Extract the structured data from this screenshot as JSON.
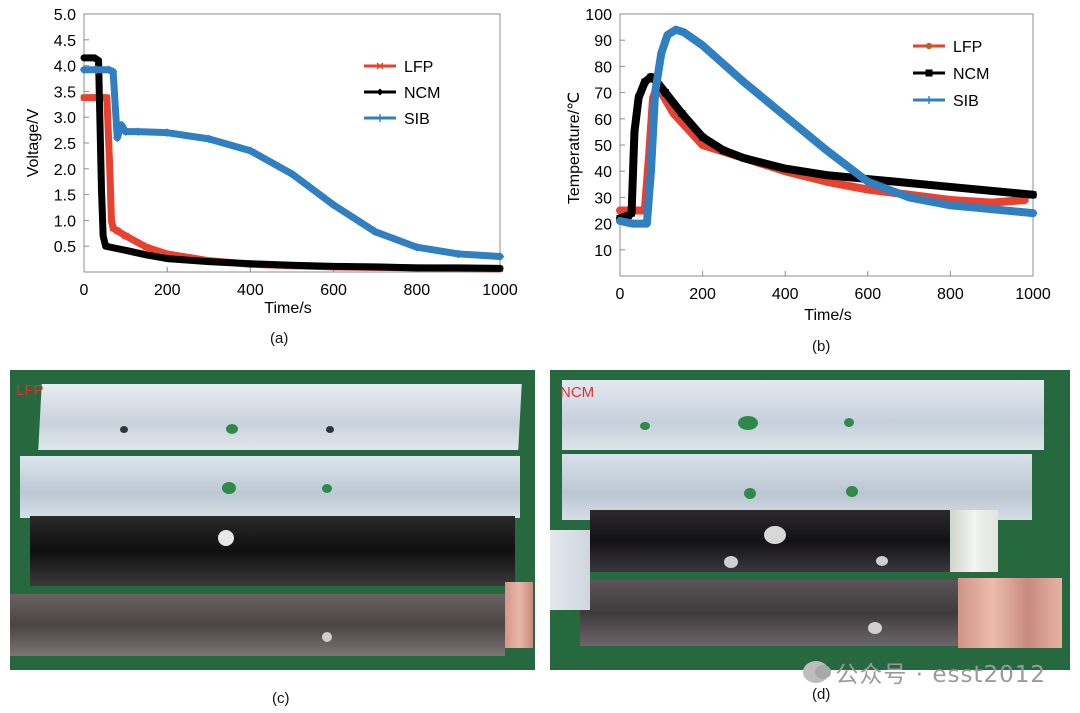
{
  "figure": {
    "panel_labels": [
      "(a)",
      "(b)",
      "(c)",
      "(d)"
    ],
    "photo_labels": {
      "c": "LFP",
      "d": "NCM"
    },
    "watermark": "公众号 · esst2012"
  },
  "colors": {
    "LFP_voltage": "#e8412f",
    "LFP_temp": "#e8412f",
    "LFP_marker_temp": "#b5651d",
    "NCM": "#000000",
    "SIB": "#2f7fc1"
  },
  "chart_data": [
    {
      "type": "line",
      "xlabel": "Time/s",
      "ylabel": "Voltage/V",
      "xlim": [
        0,
        1000
      ],
      "ylim": [
        0.0,
        5.0
      ],
      "xticks": [
        "0",
        "200",
        "400",
        "600",
        "800",
        "1000"
      ],
      "yticks": [
        "0.5",
        "1.0",
        "1.5",
        "2.0",
        "2.5",
        "3.0",
        "3.5",
        "4.0",
        "4.5",
        "5.0"
      ],
      "grid": false,
      "legend_position": "top-right",
      "series": [
        {
          "name": "LFP",
          "color": "#e8412f",
          "marker": "cross",
          "x": [
            0,
            20,
            40,
            55,
            62,
            66,
            70,
            80,
            100,
            150,
            200,
            300,
            400,
            500,
            600,
            700,
            800,
            900,
            1000
          ],
          "y": [
            3.38,
            3.38,
            3.38,
            3.38,
            2.0,
            1.0,
            0.85,
            0.8,
            0.7,
            0.48,
            0.35,
            0.22,
            0.15,
            0.12,
            0.1,
            0.09,
            0.08,
            0.07,
            0.06
          ]
        },
        {
          "name": "NCM",
          "color": "#000000",
          "marker": "diamond",
          "x": [
            0,
            15,
            25,
            35,
            42,
            46,
            52,
            70,
            100,
            150,
            200,
            300,
            400,
            500,
            600,
            700,
            800,
            900,
            1000
          ],
          "y": [
            4.15,
            4.15,
            4.15,
            4.1,
            1.6,
            0.7,
            0.5,
            0.47,
            0.42,
            0.33,
            0.26,
            0.2,
            0.16,
            0.13,
            0.11,
            0.1,
            0.08,
            0.08,
            0.07
          ]
        },
        {
          "name": "SIB",
          "color": "#2f7fc1",
          "marker": "plus",
          "x": [
            0,
            30,
            60,
            70,
            80,
            90,
            100,
            130,
            200,
            300,
            400,
            500,
            600,
            700,
            800,
            900,
            1000
          ],
          "y": [
            3.92,
            3.92,
            3.92,
            3.88,
            2.6,
            2.85,
            2.72,
            2.72,
            2.7,
            2.58,
            2.35,
            1.9,
            1.3,
            0.78,
            0.48,
            0.35,
            0.3
          ]
        }
      ]
    },
    {
      "type": "line",
      "xlabel": "Time/s",
      "ylabel": "Temperature/℃",
      "xlim": [
        0,
        1000
      ],
      "ylim": [
        0,
        100
      ],
      "xticks": [
        "0",
        "200",
        "400",
        "600",
        "800",
        "1000"
      ],
      "yticks": [
        "10",
        "20",
        "30",
        "40",
        "50",
        "60",
        "70",
        "80",
        "90",
        "100"
      ],
      "grid": false,
      "legend_position": "top-right",
      "series": [
        {
          "name": "LFP",
          "color": "#e8412f",
          "marker": "circle",
          "x": [
            0,
            40,
            60,
            70,
            80,
            90,
            100,
            130,
            200,
            300,
            400,
            500,
            600,
            700,
            800,
            900,
            980
          ],
          "y": [
            25,
            25,
            25,
            45,
            68,
            72,
            70,
            62,
            50,
            45,
            40,
            36,
            33,
            31,
            29,
            28,
            29
          ]
        },
        {
          "name": "NCM",
          "color": "#000000",
          "marker": "square",
          "x": [
            0,
            20,
            28,
            35,
            45,
            60,
            75,
            90,
            110,
            150,
            200,
            250,
            300,
            400,
            500,
            600,
            700,
            800,
            900,
            1000
          ],
          "y": [
            22,
            23,
            24,
            55,
            68,
            74,
            76,
            74,
            70,
            62,
            53,
            48,
            45,
            41,
            38.5,
            37,
            35.5,
            34,
            32.5,
            31
          ]
        },
        {
          "name": "SIB",
          "color": "#2f7fc1",
          "marker": "plus",
          "x": [
            0,
            30,
            65,
            75,
            85,
            100,
            115,
            135,
            155,
            200,
            300,
            400,
            500,
            600,
            700,
            800,
            900,
            1000
          ],
          "y": [
            21,
            20,
            20,
            40,
            70,
            85,
            92,
            94,
            93,
            88,
            74,
            61,
            48,
            36,
            30,
            27,
            25.5,
            24
          ]
        }
      ]
    }
  ]
}
